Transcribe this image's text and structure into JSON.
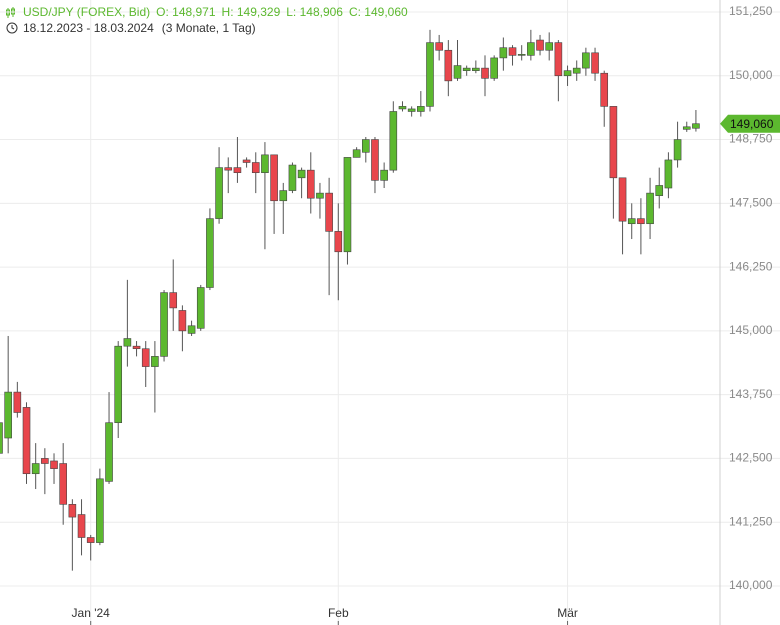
{
  "chart_data": {
    "type": "candlestick",
    "title": "USD/JPY (FOREX, Bid)",
    "header": [
      "O: 148,971",
      "H: 149,329",
      "L: 148,906",
      "C: 149,060"
    ],
    "period": "18.12.2023 - 18.03.2024",
    "period_note": "(3 Monate, 1 Tag)",
    "categories": [
      null,
      null,
      null,
      null,
      null,
      null,
      null,
      null,
      null,
      null,
      "Jan '24",
      null,
      null,
      null,
      null,
      null,
      null,
      null,
      null,
      null,
      null,
      null,
      null,
      null,
      null,
      null,
      null,
      null,
      null,
      null,
      null,
      null,
      null,
      null,
      null,
      null,
      null,
      "Feb",
      null,
      null,
      null,
      null,
      null,
      null,
      null,
      null,
      null,
      null,
      null,
      null,
      null,
      null,
      null,
      null,
      null,
      null,
      null,
      null,
      null,
      null,
      null,
      null,
      "Mär",
      null,
      null,
      null,
      null,
      null,
      null,
      null,
      null,
      null,
      null,
      null,
      null,
      null,
      null
    ],
    "open": [
      142.6,
      142.9,
      143.8,
      143.5,
      142.2,
      142.5,
      142.45,
      142.4,
      141.6,
      141.4,
      140.95,
      140.85,
      142.05,
      143.2,
      144.7,
      144.7,
      144.65,
      144.3,
      144.5,
      145.75,
      145.4,
      144.95,
      145.05,
      145.85,
      147.2,
      148.2,
      148.2,
      148.35,
      148.3,
      148.1,
      148.45,
      147.55,
      147.75,
      148.0,
      148.15,
      147.6,
      147.7,
      146.95,
      146.55,
      148.4,
      148.5,
      148.75,
      147.95,
      148.15,
      149.35,
      149.3,
      149.3,
      149.4,
      150.65,
      150.5,
      149.95,
      150.1,
      150.1,
      150.15,
      149.95,
      150.35,
      150.55,
      150.4,
      150.4,
      150.7,
      150.5,
      150.65,
      150.0,
      150.05,
      150.15,
      150.45,
      150.05,
      149.4,
      148.0,
      147.1,
      147.2,
      147.1,
      147.65,
      147.8,
      148.35,
      148.95,
      148.971
    ],
    "high": [
      143.4,
      144.9,
      144.0,
      143.6,
      142.8,
      142.7,
      142.6,
      142.8,
      141.7,
      141.7,
      141.0,
      142.3,
      143.8,
      144.8,
      146.0,
      144.8,
      144.8,
      144.8,
      145.8,
      146.4,
      145.5,
      145.2,
      145.9,
      147.4,
      148.6,
      148.4,
      148.8,
      148.4,
      148.5,
      148.7,
      148.45,
      147.9,
      148.3,
      148.2,
      148.5,
      147.9,
      148.0,
      147.5,
      148.4,
      148.6,
      148.8,
      148.8,
      148.3,
      149.5,
      149.5,
      149.4,
      149.7,
      150.9,
      150.8,
      150.7,
      150.7,
      150.2,
      150.3,
      150.4,
      150.4,
      150.75,
      150.6,
      150.6,
      150.9,
      150.8,
      150.85,
      150.7,
      150.2,
      150.3,
      150.55,
      150.55,
      150.1,
      149.4,
      148.0,
      147.5,
      147.6,
      148.0,
      148.2,
      148.5,
      149.1,
      149.1,
      149.329
    ],
    "low": [
      142.4,
      142.6,
      143.3,
      142.0,
      141.9,
      141.8,
      142.0,
      141.2,
      140.3,
      140.6,
      140.5,
      140.8,
      142.0,
      142.9,
      144.3,
      144.5,
      143.9,
      143.4,
      144.4,
      145.0,
      144.6,
      144.9,
      145.0,
      145.8,
      147.1,
      147.7,
      147.9,
      148.2,
      147.7,
      146.6,
      146.9,
      146.9,
      147.7,
      147.6,
      147.3,
      147.2,
      145.7,
      145.6,
      146.3,
      148.4,
      148.3,
      147.7,
      147.8,
      148.1,
      149.3,
      149.2,
      149.2,
      149.3,
      150.3,
      149.6,
      149.9,
      150.0,
      150.05,
      149.6,
      149.9,
      150.1,
      150.2,
      150.3,
      150.3,
      150.4,
      150.3,
      149.5,
      149.8,
      149.9,
      150.0,
      149.9,
      149.0,
      147.2,
      146.5,
      146.8,
      146.5,
      146.8,
      147.4,
      147.6,
      148.2,
      148.9,
      148.906
    ],
    "close": [
      143.2,
      143.8,
      143.4,
      142.2,
      142.4,
      142.4,
      142.3,
      141.6,
      141.35,
      140.95,
      140.85,
      142.1,
      143.2,
      144.7,
      144.85,
      144.65,
      144.3,
      144.5,
      145.75,
      145.45,
      145.0,
      145.1,
      145.85,
      147.2,
      148.2,
      148.15,
      148.1,
      148.3,
      148.1,
      148.45,
      147.55,
      147.75,
      148.25,
      148.15,
      147.6,
      147.7,
      146.95,
      146.55,
      148.4,
      148.55,
      148.75,
      147.95,
      148.15,
      149.3,
      149.4,
      149.35,
      149.4,
      150.65,
      150.5,
      149.9,
      150.2,
      150.15,
      150.15,
      149.95,
      150.35,
      150.55,
      150.4,
      150.42,
      150.65,
      150.5,
      150.65,
      150.0,
      150.1,
      150.15,
      150.45,
      150.05,
      149.4,
      148.0,
      147.15,
      147.2,
      147.1,
      147.7,
      147.85,
      148.35,
      148.75,
      149.0,
      149.06
    ],
    "up_color": "#5cb82f",
    "down_color": "#e8464c",
    "last_price": {
      "value": 149.06,
      "label": "149,060"
    },
    "ylim": [
      139.235,
      151.485
    ],
    "yticks": [
      {
        "value": 140,
        "label": "140,000"
      },
      {
        "value": 141.25,
        "label": "141,250"
      },
      {
        "value": 142.5,
        "label": "142,500"
      },
      {
        "value": 143.75,
        "label": "143,750"
      },
      {
        "value": 145,
        "label": "145,000"
      },
      {
        "value": 146.25,
        "label": "146,250"
      },
      {
        "value": 147.5,
        "label": "147,500"
      },
      {
        "value": 148.75,
        "label": "148,750"
      },
      {
        "value": 150,
        "label": "150,000"
      },
      {
        "value": 151.25,
        "label": "151,250"
      }
    ],
    "grid": true
  }
}
